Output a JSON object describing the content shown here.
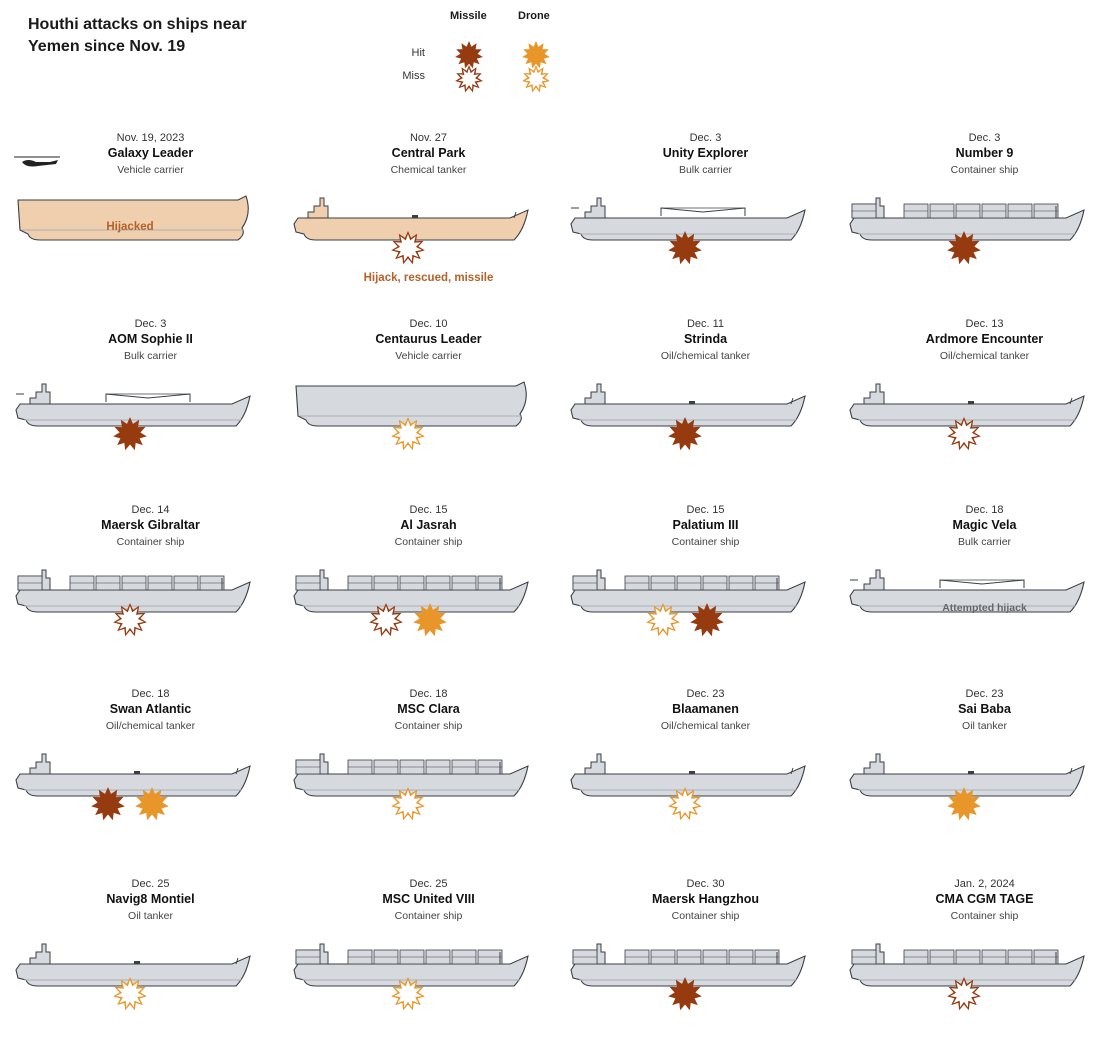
{
  "title": "Houthi attacks on ships near Yemen since Nov. 19",
  "legend": {
    "missile_label": "Missile",
    "drone_label": "Drone",
    "hit_label": "Hit",
    "miss_label": "Miss"
  },
  "colors": {
    "missile": "#963a10",
    "drone": "#e8962a",
    "hull": "#d6dadf",
    "hull_dark": "#a9b0b8",
    "hijack_hull": "#efcfae",
    "hijack_text": "#b5612a",
    "outline": "#3a3f45",
    "attempted_text": "#666666"
  },
  "ships": [
    {
      "date": "Nov. 19, 2023",
      "name": "Galaxy Leader",
      "type": "Vehicle carrier",
      "silhouette": "vehicle",
      "hijack_fill": true,
      "label_on_hull": "Hijacked",
      "attacks": []
    },
    {
      "date": "Nov. 27",
      "name": "Central Park",
      "type": "Chemical tanker",
      "silhouette": "tanker",
      "hijack_fill": true,
      "note": "Hijack, rescued, missile",
      "attacks": [
        {
          "weapon": "missile",
          "result": "miss"
        }
      ]
    },
    {
      "date": "Dec. 3",
      "name": "Unity Explorer",
      "type": "Bulk carrier",
      "silhouette": "bulk",
      "attacks": [
        {
          "weapon": "missile",
          "result": "hit"
        }
      ]
    },
    {
      "date": "Dec. 3",
      "name": "Number 9",
      "type": "Container ship",
      "silhouette": "container",
      "attacks": [
        {
          "weapon": "missile",
          "result": "hit"
        }
      ]
    },
    {
      "date": "Dec. 3",
      "name": "AOM Sophie II",
      "type": "Bulk carrier",
      "silhouette": "bulk",
      "attacks": [
        {
          "weapon": "missile",
          "result": "hit"
        }
      ]
    },
    {
      "date": "Dec. 10",
      "name": "Centaurus Leader",
      "type": "Vehicle carrier",
      "silhouette": "vehicle",
      "attacks": [
        {
          "weapon": "drone",
          "result": "miss"
        }
      ]
    },
    {
      "date": "Dec. 11",
      "name": "Strinda",
      "type": "Oil/chemical tanker",
      "silhouette": "tanker",
      "attacks": [
        {
          "weapon": "missile",
          "result": "hit"
        }
      ]
    },
    {
      "date": "Dec. 13",
      "name": "Ardmore Encounter",
      "type": "Oil/chemical tanker",
      "silhouette": "tanker",
      "attacks": [
        {
          "weapon": "missile",
          "result": "miss"
        }
      ]
    },
    {
      "date": "Dec. 14",
      "name": "Maersk Gibraltar",
      "type": "Container ship",
      "silhouette": "container",
      "attacks": [
        {
          "weapon": "missile",
          "result": "miss"
        }
      ]
    },
    {
      "date": "Dec. 15",
      "name": "Al Jasrah",
      "type": "Container ship",
      "silhouette": "container",
      "attacks": [
        {
          "weapon": "missile",
          "result": "miss"
        },
        {
          "weapon": "drone",
          "result": "hit"
        }
      ]
    },
    {
      "date": "Dec. 15",
      "name": "Palatium III",
      "type": "Container ship",
      "silhouette": "container",
      "attacks": [
        {
          "weapon": "drone",
          "result": "miss"
        },
        {
          "weapon": "missile",
          "result": "hit"
        }
      ]
    },
    {
      "date": "Dec. 18",
      "name": "Magic Vela",
      "type": "Bulk carrier",
      "silhouette": "bulk",
      "note": "Attempted hijack",
      "attacks": []
    },
    {
      "date": "Dec. 18",
      "name": "Swan Atlantic",
      "type": "Oil/chemical tanker",
      "silhouette": "tanker",
      "attacks": [
        {
          "weapon": "missile",
          "result": "hit"
        },
        {
          "weapon": "drone",
          "result": "hit"
        }
      ]
    },
    {
      "date": "Dec. 18",
      "name": "MSC Clara",
      "type": "Container ship",
      "silhouette": "container",
      "attacks": [
        {
          "weapon": "drone",
          "result": "miss"
        }
      ]
    },
    {
      "date": "Dec. 23",
      "name": "Blaamanen",
      "type": "Oil/chemical tanker",
      "silhouette": "tanker",
      "attacks": [
        {
          "weapon": "drone",
          "result": "miss"
        }
      ]
    },
    {
      "date": "Dec. 23",
      "name": "Sai Baba",
      "type": "Oil tanker",
      "silhouette": "tanker",
      "attacks": [
        {
          "weapon": "drone",
          "result": "hit"
        }
      ]
    },
    {
      "date": "Dec. 25",
      "name": "Navig8 Montiel",
      "type": "Oil tanker",
      "silhouette": "tanker",
      "attacks": [
        {
          "weapon": "drone",
          "result": "miss"
        }
      ]
    },
    {
      "date": "Dec. 25",
      "name": "MSC United VIII",
      "type": "Container ship",
      "silhouette": "container",
      "attacks": [
        {
          "weapon": "drone",
          "result": "miss"
        }
      ]
    },
    {
      "date": "Dec. 30",
      "name": "Maersk Hangzhou",
      "type": "Container ship",
      "silhouette": "container",
      "attacks": [
        {
          "weapon": "missile",
          "result": "hit"
        }
      ]
    },
    {
      "date": "Jan. 2, 2024",
      "name": "CMA CGM TAGE",
      "type": "Container ship",
      "silhouette": "container",
      "attacks": [
        {
          "weapon": "missile",
          "result": "miss"
        }
      ]
    }
  ]
}
